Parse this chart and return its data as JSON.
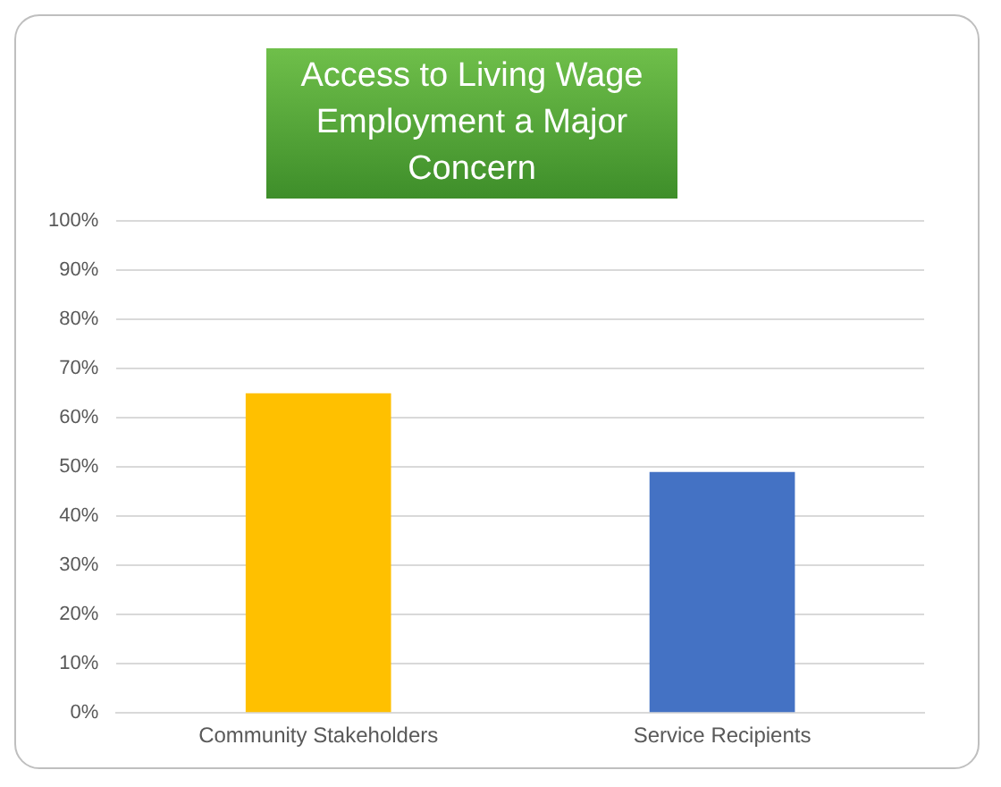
{
  "chart_data": {
    "type": "bar",
    "title": "Access to Living Wage Employment a Major Concern",
    "categories": [
      "Community Stakeholders",
      "Service Recipients"
    ],
    "values": [
      65,
      49
    ],
    "colors": [
      "#ffc000",
      "#4472c4"
    ],
    "ylim": [
      0,
      100
    ],
    "yticks": [
      {
        "value": 0,
        "label": "0%"
      },
      {
        "value": 10,
        "label": "10%"
      },
      {
        "value": 20,
        "label": "20%"
      },
      {
        "value": 30,
        "label": "30%"
      },
      {
        "value": 40,
        "label": "40%"
      },
      {
        "value": 50,
        "label": "50%"
      },
      {
        "value": 60,
        "label": "60%"
      },
      {
        "value": 70,
        "label": "70%"
      },
      {
        "value": 80,
        "label": "80%"
      },
      {
        "value": 90,
        "label": "90%"
      },
      {
        "value": 100,
        "label": "100%"
      }
    ],
    "grid": "y"
  }
}
